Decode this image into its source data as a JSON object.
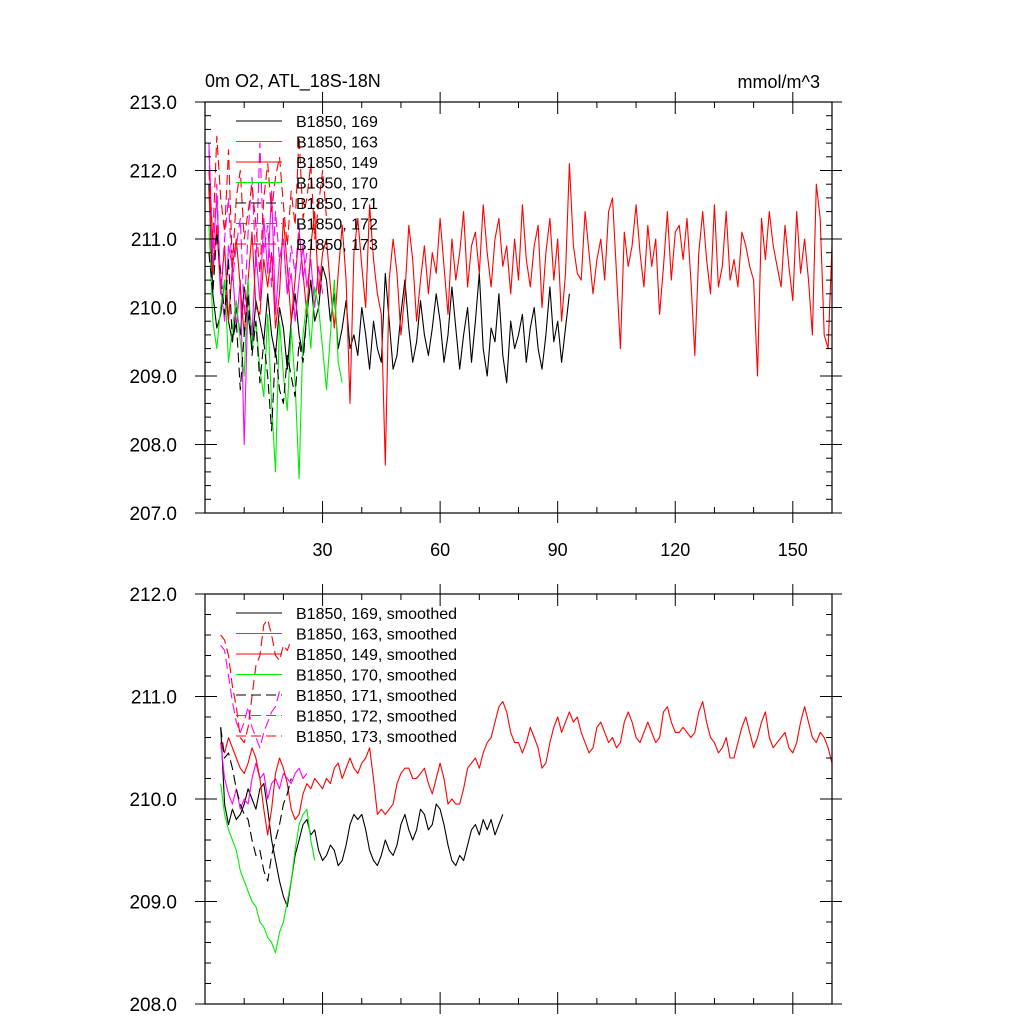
{
  "colors": {
    "black": "#000000",
    "magenta": "#ff00ff",
    "red": "#ff0000",
    "green": "#00ee00"
  },
  "chart_data": [
    {
      "type": "line",
      "title": "0m O2, ATL_18S-18N",
      "units": "mmol/m^3",
      "xlim": [
        0,
        160
      ],
      "ylim": [
        207.0,
        213.0
      ],
      "xticks": [
        30,
        60,
        90,
        120,
        150
      ],
      "xtick_labels": [
        "30",
        "60",
        "90",
        "120",
        "150"
      ],
      "yticks": [
        207.0,
        208.0,
        209.0,
        210.0,
        211.0,
        212.0,
        213.0
      ],
      "ytick_labels": [
        "207.0",
        "208.0",
        "209.0",
        "210.0",
        "211.0",
        "212.0",
        "213.0"
      ],
      "legend_position": "top-left",
      "series": [
        {
          "name": "B1850, 169",
          "color": "#000000",
          "dash": false,
          "x_start": 1,
          "values": [
            211.8,
            210.2,
            209.7,
            209.9,
            210.4,
            209.8,
            209.5,
            210.0,
            209.6,
            210.3,
            209.9,
            209.4,
            210.1,
            209.8,
            209.5,
            210.2,
            209.6,
            209.3,
            210.0,
            209.7,
            209.1,
            209.8,
            210.2,
            209.6,
            209.3,
            209.9,
            210.4,
            209.8,
            210.0,
            210.6,
            210.4,
            209.8,
            210.2,
            209.4,
            209.7,
            210.1,
            209.4,
            209.6,
            209.3,
            210.0,
            209.6,
            209.1,
            209.8,
            209.4,
            209.2,
            210.5,
            209.8,
            209.1,
            209.3,
            209.9,
            210.4,
            209.7,
            209.2,
            209.5,
            210.1,
            209.6,
            209.3,
            209.7,
            210.2,
            209.8,
            209.2,
            209.6,
            210.3,
            209.7,
            209.1,
            209.6,
            210.0,
            209.2,
            209.8,
            210.5,
            209.4,
            209.0,
            209.7,
            209.5,
            210.2,
            209.3,
            208.9,
            209.8,
            209.4,
            209.6,
            209.9,
            209.2,
            209.7,
            210.0,
            209.4,
            209.1,
            209.6,
            210.3,
            209.5,
            209.8,
            209.2,
            209.7,
            210.2
          ]
        },
        {
          "name": "B1850, 163",
          "color": "#ff00ff",
          "dash": false,
          "x_start": 1,
          "values": [
            212.4,
            210.8,
            211.6,
            210.3,
            209.8,
            210.9,
            210.6,
            209.7,
            210.4,
            208.0,
            210.2,
            209.6,
            210.8,
            210.1,
            211.3,
            210.5,
            211.7,
            209.9,
            210.7,
            211.0,
            210.2,
            210.5,
            209.8,
            210.4,
            210.9,
            210.3,
            210.7,
            210.0,
            210.6,
            210.2
          ]
        },
        {
          "name": "B1850, 149",
          "color": "#ff0000",
          "dash": false,
          "x_start": 1,
          "values": [
            211.7,
            210.5,
            211.2,
            210.2,
            210.9,
            209.8,
            210.6,
            211.0,
            210.3,
            209.6,
            210.4,
            211.1,
            210.0,
            209.9,
            210.7,
            210.3,
            210.8,
            209.7,
            210.2,
            211.3,
            210.6,
            209.8,
            210.4,
            211.1,
            210.5,
            209.9,
            210.9,
            211.4,
            210.2,
            210.8,
            211.0,
            210.3,
            209.7,
            210.5,
            211.2,
            210.4,
            208.6,
            210.8,
            211.3,
            210.6,
            210.0,
            211.5,
            210.7,
            210.2,
            209.9,
            207.7,
            210.4,
            211.0,
            210.5,
            209.6,
            210.2,
            211.2,
            210.7,
            209.8,
            210.4,
            210.9,
            210.2,
            210.8,
            210.5,
            211.3,
            210.6,
            209.9,
            211.0,
            210.4,
            210.8,
            211.4,
            210.3,
            210.9,
            211.1,
            210.5,
            211.5,
            210.8,
            210.3,
            211.0,
            211.3,
            210.6,
            210.9,
            210.2,
            211.0,
            210.4,
            211.5,
            210.7,
            210.3,
            210.9,
            211.2,
            210.0,
            210.8,
            211.3,
            210.4,
            211.0,
            209.8,
            210.5,
            212.1,
            210.9,
            210.5,
            210.4,
            211.4,
            210.8,
            210.2,
            210.7,
            211.0,
            210.4,
            211.4,
            211.6,
            210.5,
            209.4,
            211.1,
            210.6,
            210.9,
            211.5,
            210.8,
            210.3,
            211.2,
            210.6,
            211.0,
            209.9,
            210.6,
            211.4,
            210.4,
            211.1,
            211.2,
            210.7,
            211.3,
            210.4,
            209.3,
            210.8,
            211.4,
            210.7,
            210.2,
            211.5,
            210.3,
            210.6,
            211.4,
            210.4,
            210.7,
            210.3,
            211.1,
            210.9,
            210.6,
            210.4,
            209.0,
            211.3,
            210.7,
            211.4,
            210.9,
            210.6,
            210.3,
            211.2,
            210.6,
            210.1,
            211.4,
            210.5,
            211.0,
            210.4,
            209.6,
            211.8,
            211.3,
            209.6,
            209.4,
            210.9,
            211.0
          ]
        },
        {
          "name": "B1850, 170",
          "color": "#00ee00",
          "dash": false,
          "x_start": 1,
          "values": [
            211.2,
            209.8,
            209.4,
            210.0,
            210.4,
            209.2,
            209.7,
            210.1,
            209.5,
            209.0,
            210.4,
            209.4,
            209.8,
            209.1,
            208.7,
            209.9,
            208.6,
            207.6,
            209.8,
            209.0,
            208.5,
            209.7,
            208.9,
            207.5,
            209.6,
            210.1,
            209.4,
            210.3,
            210.0,
            209.4,
            208.8,
            209.6,
            210.4,
            209.2,
            208.9
          ]
        },
        {
          "name": "B1850, 171",
          "color": "#000000",
          "dash": true,
          "x_start": 1,
          "values": [
            210.8,
            210.2,
            211.1,
            210.5,
            209.9,
            210.7,
            209.5,
            209.8,
            208.8,
            209.6,
            210.2,
            209.3,
            209.8,
            208.9,
            209.5,
            209.0,
            208.2,
            209.4,
            208.8,
            208.6,
            209.3,
            209.0,
            208.7,
            209.5,
            209.2,
            209.9
          ]
        },
        {
          "name": "B1850, 172",
          "color": "#ff00ff",
          "dash": true,
          "x_start": 1,
          "values": [
            212.3,
            210.6,
            211.8,
            210.2,
            211.0,
            211.6,
            210.4,
            210.9,
            211.3,
            209.9,
            211.1,
            211.9,
            210.6,
            212.4,
            210.8,
            211.2,
            210.3,
            211.4,
            210.7,
            211.0,
            210.2,
            210.9,
            210.5,
            211.2,
            210.4,
            210.8
          ]
        },
        {
          "name": "B1850, 173",
          "color": "#ff0000",
          "dash": true,
          "x_start": 1,
          "values": [
            212.0,
            211.0,
            212.5,
            211.6,
            211.1,
            212.3,
            210.6,
            211.6,
            212.0,
            211.0,
            211.4,
            211.8,
            211.2,
            210.5,
            211.6,
            212.1,
            211.4,
            211.9,
            212.2,
            211.5,
            210.9,
            211.7,
            211.2,
            212.5,
            211.3,
            211.6,
            212.1,
            211.0,
            211.5,
            212.0,
            211.3
          ]
        }
      ]
    },
    {
      "type": "line",
      "xlim": [
        0,
        160
      ],
      "ylim": [
        208.0,
        212.0
      ],
      "xticks": [
        30,
        60,
        90,
        120,
        150
      ],
      "yticks": [
        208.0,
        209.0,
        210.0,
        211.0,
        212.0
      ],
      "ytick_labels": [
        "208.0",
        "209.0",
        "210.0",
        "211.0",
        "212.0"
      ],
      "legend_position": "top-left",
      "series": [
        {
          "name": "B1850, 169, smoothed",
          "color": "#000000",
          "dash": false,
          "x_start": 4,
          "values": [
            210.7,
            209.95,
            209.75,
            209.9,
            209.8,
            209.85,
            209.95,
            210.1,
            210.0,
            209.9,
            210.1,
            210.15,
            209.9,
            209.6,
            209.4,
            209.2,
            209.05,
            208.95,
            209.2,
            209.45,
            209.6,
            209.75,
            209.8,
            209.65,
            209.7,
            209.5,
            209.4,
            209.45,
            209.55,
            209.5,
            209.35,
            209.4,
            209.55,
            209.75,
            209.85,
            209.8,
            209.85,
            209.7,
            209.5,
            209.4,
            209.35,
            209.45,
            209.6,
            209.5,
            209.45,
            209.55,
            209.75,
            209.85,
            209.7,
            209.6,
            209.7,
            209.9,
            209.85,
            209.7,
            209.75,
            209.95,
            209.9,
            209.75,
            209.55,
            209.4,
            209.35,
            209.45,
            209.4,
            209.55,
            209.7,
            209.75,
            209.65,
            209.8,
            209.7,
            209.8,
            209.65,
            209.75,
            209.85
          ]
        },
        {
          "name": "B1850, 163, smoothed",
          "color": "#ff00ff",
          "dash": false,
          "x_start": 4,
          "values": [
            210.55,
            210.2,
            210.05,
            209.95,
            210.1,
            209.9,
            210.0,
            209.95,
            210.2,
            210.35,
            210.2,
            210.25,
            210.0,
            210.15,
            210.2,
            210.1,
            210.25,
            210.2,
            210.15,
            210.25,
            210.3,
            210.2,
            210.25
          ]
        },
        {
          "name": "B1850, 149, smoothed",
          "color": "#ff0000",
          "dash": false,
          "x_start": 4,
          "values": [
            210.55,
            210.45,
            210.6,
            210.5,
            210.4,
            210.3,
            210.25,
            210.35,
            210.5,
            210.4,
            210.2,
            209.9,
            209.65,
            209.9,
            210.25,
            210.4,
            210.3,
            210.15,
            209.9,
            209.8,
            209.85,
            210.05,
            210.15,
            210.1,
            210.2,
            210.15,
            210.1,
            210.2,
            210.15,
            210.3,
            210.35,
            210.2,
            210.3,
            210.4,
            210.3,
            210.25,
            210.35,
            210.4,
            210.5,
            210.2,
            209.85,
            209.9,
            209.85,
            209.9,
            209.95,
            210.15,
            210.25,
            210.3,
            210.3,
            210.2,
            210.2,
            210.25,
            210.3,
            210.15,
            210.05,
            210.2,
            210.35,
            210.2,
            209.95,
            210.0,
            209.95,
            209.95,
            210.1,
            210.3,
            210.35,
            210.4,
            210.3,
            210.45,
            210.55,
            210.6,
            210.75,
            210.9,
            210.95,
            210.85,
            210.65,
            210.55,
            210.55,
            210.45,
            210.55,
            210.7,
            210.6,
            210.5,
            210.3,
            210.35,
            210.55,
            210.7,
            210.8,
            210.65,
            210.75,
            210.85,
            210.75,
            210.8,
            210.65,
            210.55,
            210.45,
            210.5,
            210.7,
            210.75,
            210.65,
            210.55,
            210.6,
            210.5,
            210.55,
            210.75,
            210.85,
            210.75,
            210.6,
            210.55,
            210.65,
            210.75,
            210.65,
            210.55,
            210.6,
            210.85,
            210.9,
            210.75,
            210.65,
            210.65,
            210.7,
            210.65,
            210.6,
            210.65,
            210.85,
            210.95,
            210.75,
            210.6,
            210.55,
            210.45,
            210.5,
            210.6,
            210.4,
            210.4,
            210.55,
            210.7,
            210.8,
            210.65,
            210.5,
            210.6,
            210.75,
            210.85,
            210.6,
            210.5,
            210.55,
            210.6,
            210.65,
            210.5,
            210.45,
            210.55,
            210.75,
            210.9,
            210.75,
            210.6,
            210.55,
            210.65,
            210.6,
            210.5,
            210.35,
            210.4,
            210.6
          ]
        },
        {
          "name": "B1850, 170, smoothed",
          "color": "#00ee00",
          "dash": false,
          "x_start": 4,
          "values": [
            210.15,
            209.85,
            209.7,
            209.6,
            209.5,
            209.3,
            209.2,
            209.1,
            209.0,
            208.95,
            208.8,
            208.75,
            208.65,
            208.6,
            208.5,
            208.7,
            208.8,
            209.0,
            209.2,
            209.5,
            209.75,
            209.85,
            209.9,
            209.6,
            209.4
          ]
        },
        {
          "name": "B1850, 171, smoothed",
          "color": "#000000",
          "dash": true,
          "x_start": 4,
          "values": [
            210.7,
            210.4,
            210.45,
            210.3,
            210.1,
            209.95,
            209.85,
            209.8,
            209.6,
            209.45,
            209.5,
            209.3,
            209.2,
            209.45,
            209.6,
            209.75,
            209.95,
            210.05,
            210.2
          ]
        },
        {
          "name": "B1850, 172, smoothed",
          "color": "#ff00ff",
          "dash": true,
          "x_start": 4,
          "values": [
            211.5,
            211.45,
            211.2,
            210.95,
            210.75,
            210.65,
            210.75,
            210.9,
            210.7,
            210.6,
            210.5,
            210.65,
            210.75,
            210.85,
            210.9,
            211.05
          ]
        },
        {
          "name": "B1850, 173, smoothed",
          "color": "#ff0000",
          "dash": true,
          "x_start": 4,
          "values": [
            211.6,
            211.55,
            211.4,
            211.1,
            210.9,
            210.6,
            210.55,
            210.7,
            211.0,
            211.3,
            211.4,
            211.7,
            211.75,
            211.6,
            211.4,
            211.35,
            211.5,
            211.45,
            211.55
          ]
        }
      ]
    }
  ]
}
